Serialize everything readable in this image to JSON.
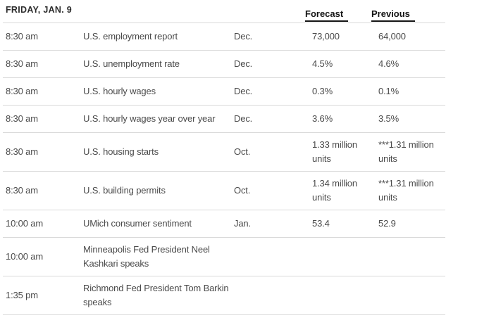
{
  "page": {
    "date_header": "FRIDAY, JAN. 9",
    "columns": {
      "forecast": "Forecast",
      "previous": "Previous"
    }
  },
  "table": {
    "rows": [
      {
        "time": "8:30 am",
        "report": "U.S. employment report",
        "period": "Dec.",
        "forecast": "73,000",
        "previous": "64,000"
      },
      {
        "time": "8:30 am",
        "report": "U.S. unemployment rate",
        "period": "Dec.",
        "forecast": "4.5%",
        "previous": "4.6%"
      },
      {
        "time": "8:30 am",
        "report": "U.S. hourly wages",
        "period": "Dec.",
        "forecast": "0.3%",
        "previous": "0.1%"
      },
      {
        "time": "8:30 am",
        "report": "U.S. hourly wages year over year",
        "period": "Dec.",
        "forecast": "3.6%",
        "previous": "3.5%"
      },
      {
        "time": "8:30 am",
        "report": "U.S. housing starts",
        "period": "Oct.",
        "forecast": "1.33 million units",
        "previous": "***1.31 million units"
      },
      {
        "time": "8:30 am",
        "report": "U.S. building permits",
        "period": "Oct.",
        "forecast": "1.34 million units",
        "previous": "***1.31 million units"
      },
      {
        "time": "10:00 am",
        "report": "UMich consumer sentiment",
        "period": "Jan.",
        "forecast": "53.4",
        "previous": "52.9"
      },
      {
        "time": "10:00 am",
        "report": "Minneapolis Fed President Neel Kashkari speaks",
        "period": "",
        "forecast": "",
        "previous": ""
      },
      {
        "time": "1:35 pm",
        "report": "Richmond Fed President Tom Barkin speaks",
        "period": "",
        "forecast": "",
        "previous": ""
      }
    ]
  },
  "colors": {
    "divider": "#d9d9d9",
    "body_text": "#4a4a4a",
    "heading_text": "#2b2b2b",
    "column_header_text": "#141414",
    "background": "#ffffff"
  }
}
